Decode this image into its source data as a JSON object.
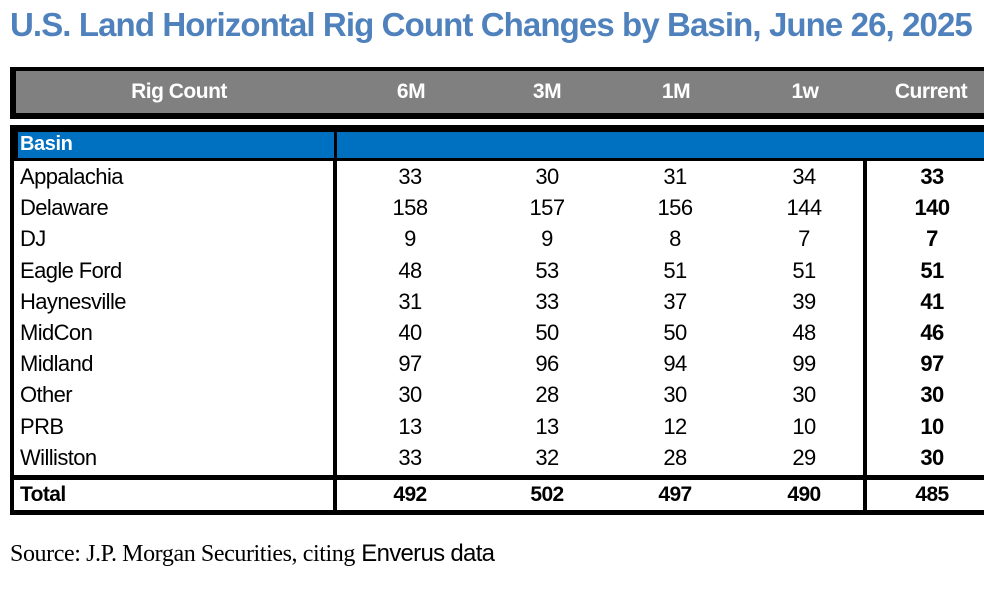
{
  "title": "U.S. Land Horizontal Rig Count Changes by Basin, June 26, 2025",
  "source_serif": "Source: J.P. Morgan Securities, citing",
  "source_sans": "Enverus data",
  "chart_data": {
    "type": "table",
    "header": [
      "Rig Count",
      "6M",
      "3M",
      "1M",
      "1w",
      "Current"
    ],
    "section_label": "Basin",
    "rows": [
      {
        "name": "Appalachia",
        "values": [
          "33",
          "30",
          "31",
          "34",
          "33"
        ]
      },
      {
        "name": "Delaware",
        "values": [
          "158",
          "157",
          "156",
          "144",
          "140"
        ]
      },
      {
        "name": "DJ",
        "values": [
          "9",
          "9",
          "8",
          "7",
          "7"
        ]
      },
      {
        "name": "Eagle Ford",
        "values": [
          "48",
          "53",
          "51",
          "51",
          "51"
        ]
      },
      {
        "name": "Haynesville",
        "values": [
          "31",
          "33",
          "37",
          "39",
          "41"
        ]
      },
      {
        "name": "MidCon",
        "values": [
          "40",
          "50",
          "50",
          "48",
          "46"
        ]
      },
      {
        "name": "Midland",
        "values": [
          "97",
          "96",
          "94",
          "99",
          "97"
        ]
      },
      {
        "name": "Other",
        "values": [
          "30",
          "28",
          "30",
          "30",
          "30"
        ]
      },
      {
        "name": "PRB",
        "values": [
          "13",
          "13",
          "12",
          "10",
          "10"
        ]
      },
      {
        "name": "Williston",
        "values": [
          "33",
          "32",
          "28",
          "29",
          "30"
        ]
      }
    ],
    "total": {
      "name": "Total",
      "values": [
        "492",
        "502",
        "497",
        "490",
        "485"
      ]
    }
  }
}
